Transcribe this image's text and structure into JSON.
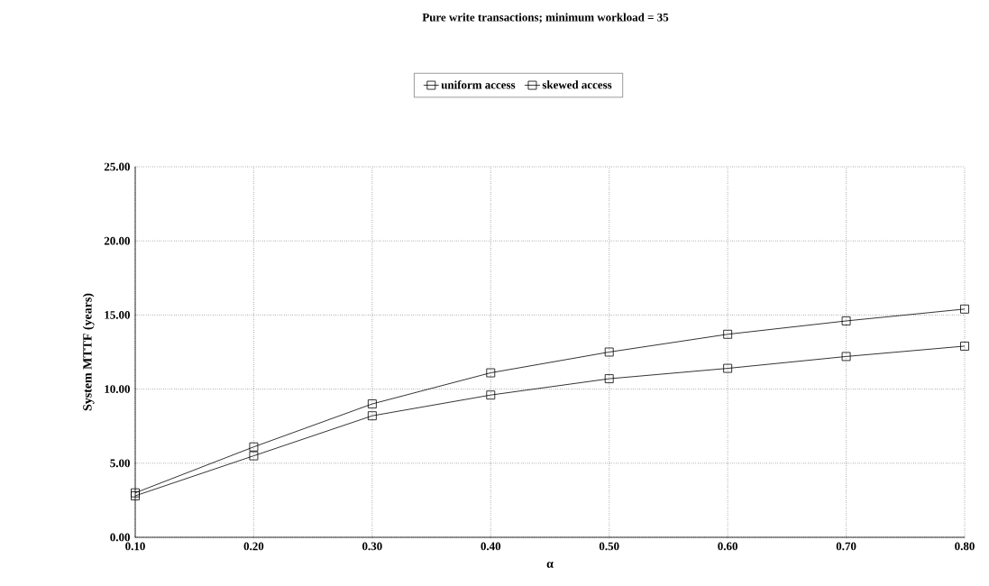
{
  "chart_data": {
    "type": "line",
    "title": "Pure write transactions;  minimum workload = 35",
    "xlabel": "α",
    "ylabel": "System MTTF (years)",
    "x": [
      0.1,
      0.2,
      0.3,
      0.4,
      0.5,
      0.6,
      0.7,
      0.8
    ],
    "series": [
      {
        "name": "uniform access",
        "color": "#000000",
        "values": [
          3.0,
          6.1,
          9.0,
          11.1,
          12.5,
          13.7,
          14.6,
          15.4
        ]
      },
      {
        "name": "skewed access",
        "color": "#000000",
        "values": [
          2.8,
          5.5,
          8.2,
          9.6,
          10.7,
          11.4,
          12.2,
          12.9
        ]
      }
    ],
    "xlim": [
      0.1,
      0.8
    ],
    "ylim": [
      0,
      25
    ],
    "xticks": [
      {
        "value": 0.1,
        "label": "0.10"
      },
      {
        "value": 0.2,
        "label": "0.20"
      },
      {
        "value": 0.3,
        "label": "0.30"
      },
      {
        "value": 0.4,
        "label": "0.40"
      },
      {
        "value": 0.5,
        "label": "0.50"
      },
      {
        "value": 0.6,
        "label": "0.60"
      },
      {
        "value": 0.7,
        "label": "0.70"
      },
      {
        "value": 0.8,
        "label": "0.80"
      }
    ],
    "yticks": [
      {
        "value": 0,
        "label": "0.00"
      },
      {
        "value": 5,
        "label": "5.00"
      },
      {
        "value": 10,
        "label": "10.00"
      },
      {
        "value": 15,
        "label": "15.00"
      },
      {
        "value": 20,
        "label": "20.00"
      },
      {
        "value": 25,
        "label": "25.00"
      }
    ],
    "grid": true,
    "legend": "top",
    "marker": "square",
    "line_style": "solid"
  }
}
